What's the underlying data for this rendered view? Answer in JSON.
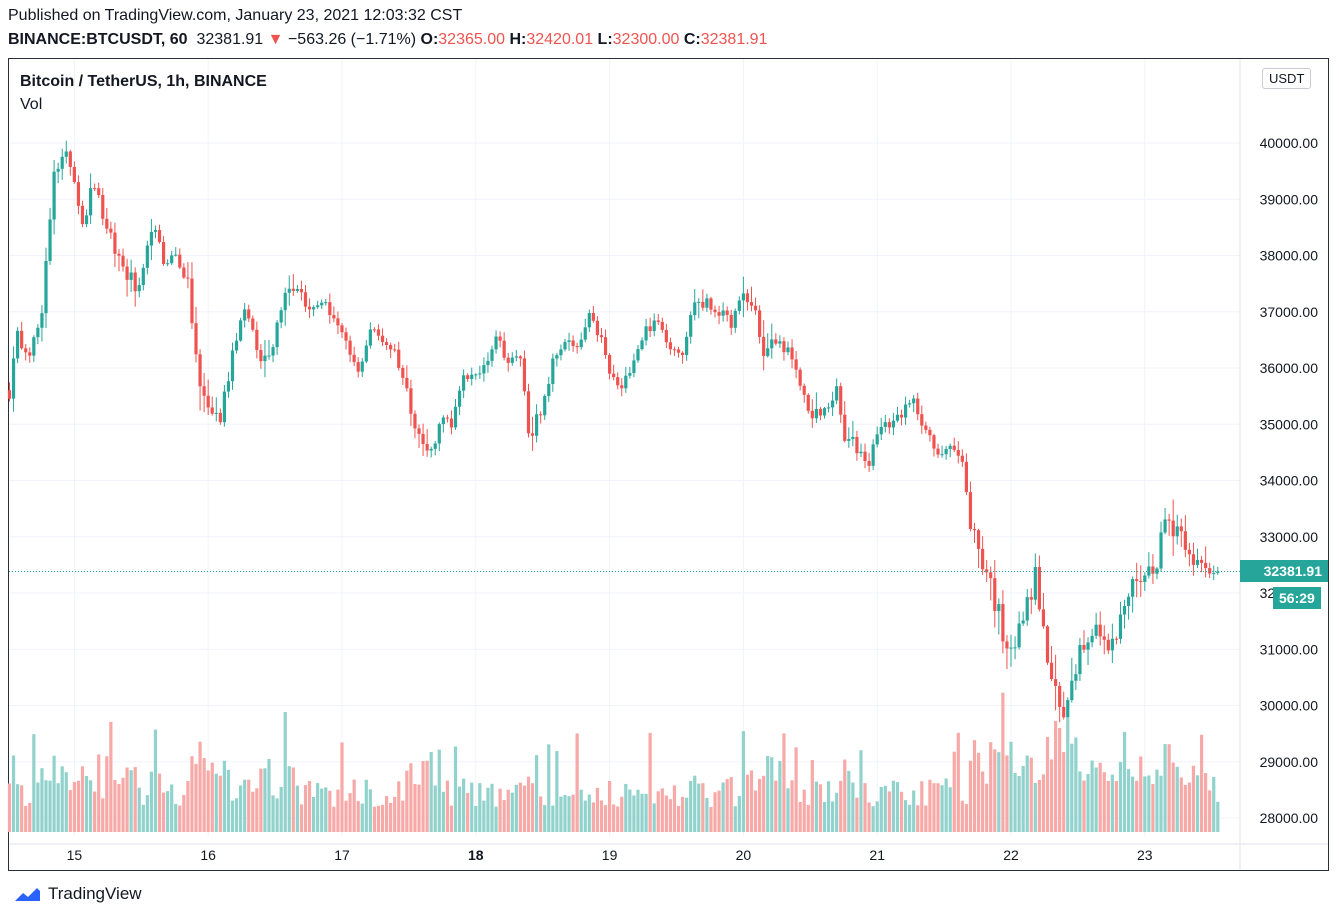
{
  "header": {
    "published": "Published on TradingView.com, January 23, 2021 12:03:32 CST",
    "symbol": "BINANCE:BTCUSDT, 60",
    "price": "32381.91",
    "change": "−563.26 (−1.71%)",
    "open_label": "O:",
    "open": "32365.00",
    "high_label": "H:",
    "high": "32420.01",
    "low_label": "L:",
    "low": "32300.00",
    "close_label": "C:",
    "close": "32381.91"
  },
  "legend": {
    "title": "Bitcoin / TetherUS, 1h, BINANCE",
    "volume": "Vol"
  },
  "currency_badge": "USDT",
  "price_badge": "32381.91",
  "countdown_badge": "56:29",
  "brand": "TradingView",
  "colors": {
    "up": "#26a69a",
    "down": "#ef5350",
    "vol_up": "#92d2cc",
    "vol_down": "#f7a9a7"
  },
  "chart_data": {
    "type": "candlestick",
    "y_ticks": [
      28000,
      29000,
      30000,
      31000,
      32000,
      33000,
      34000,
      35000,
      36000,
      37000,
      38000,
      39000,
      40000
    ],
    "y_tick_labels": [
      "28000.00",
      "29000.00",
      "30000.00",
      "31000.00",
      "32000.00",
      "33000.00",
      "34000.00",
      "35000.00",
      "36000.00",
      "37000.00",
      "38000.00",
      "39000.00",
      "40000.00"
    ],
    "ylim": [
      27750,
      41050
    ],
    "x_tick_labels": [
      "15",
      "16",
      "17",
      "18",
      "19",
      "20",
      "21",
      "22",
      "23"
    ],
    "x_tick_hours": [
      16,
      49,
      82,
      115,
      148,
      181,
      214,
      247,
      280
    ],
    "current_price": 32381.91,
    "anchors": [
      [
        0,
        35600,
        2
      ],
      [
        2,
        36500,
        1
      ],
      [
        5,
        36300,
        1
      ],
      [
        8,
        36900,
        2
      ],
      [
        11,
        39600,
        2
      ],
      [
        15,
        39700,
        1
      ],
      [
        18,
        38600,
        2
      ],
      [
        21,
        39300,
        1
      ],
      [
        24,
        38400,
        2
      ],
      [
        28,
        37800,
        2
      ],
      [
        32,
        37300,
        1
      ],
      [
        35,
        38500,
        2
      ],
      [
        38,
        37900,
        1
      ],
      [
        41,
        38000,
        1
      ],
      [
        44,
        37500,
        2
      ],
      [
        47,
        35600,
        3
      ],
      [
        49,
        35300,
        2
      ],
      [
        52,
        35100,
        2
      ],
      [
        55,
        36300,
        1
      ],
      [
        58,
        37100,
        1
      ],
      [
        62,
        36100,
        2
      ],
      [
        65,
        36500,
        1
      ],
      [
        68,
        37400,
        2
      ],
      [
        71,
        37500,
        1
      ],
      [
        74,
        37000,
        1
      ],
      [
        77,
        37200,
        1
      ],
      [
        80,
        36900,
        1
      ],
      [
        83,
        36400,
        1
      ],
      [
        86,
        35900,
        1
      ],
      [
        89,
        36700,
        1
      ],
      [
        92,
        36500,
        1
      ],
      [
        95,
        36300,
        1
      ],
      [
        98,
        35600,
        2
      ],
      [
        102,
        34600,
        2
      ],
      [
        104,
        34500,
        1
      ],
      [
        107,
        35200,
        1
      ],
      [
        109,
        34900,
        1
      ],
      [
        112,
        35900,
        1
      ],
      [
        115,
        35800,
        1
      ],
      [
        118,
        36200,
        1
      ],
      [
        120,
        36600,
        1
      ],
      [
        123,
        36100,
        1
      ],
      [
        126,
        36200,
        1
      ],
      [
        128,
        34900,
        2
      ],
      [
        131,
        35100,
        1
      ],
      [
        134,
        36100,
        1
      ],
      [
        137,
        36500,
        1
      ],
      [
        140,
        36300,
        1
      ],
      [
        143,
        36900,
        1
      ],
      [
        146,
        36500,
        1
      ],
      [
        148,
        35900,
        1
      ],
      [
        151,
        35600,
        1
      ],
      [
        154,
        36200,
        1
      ],
      [
        157,
        36700,
        1
      ],
      [
        160,
        36800,
        1
      ],
      [
        163,
        36400,
        1
      ],
      [
        166,
        36300,
        1
      ],
      [
        169,
        37200,
        2
      ],
      [
        172,
        37100,
        1
      ],
      [
        175,
        37000,
        1
      ],
      [
        178,
        36800,
        1
      ],
      [
        181,
        37300,
        2
      ],
      [
        184,
        37000,
        1
      ],
      [
        186,
        36200,
        2
      ],
      [
        189,
        36500,
        1
      ],
      [
        192,
        36300,
        1
      ],
      [
        195,
        35700,
        1
      ],
      [
        198,
        35100,
        2
      ],
      [
        201,
        35200,
        1
      ],
      [
        204,
        35600,
        1
      ],
      [
        206,
        34700,
        2
      ],
      [
        209,
        34600,
        1
      ],
      [
        212,
        34300,
        1
      ],
      [
        214,
        34900,
        1
      ],
      [
        217,
        35000,
        1
      ],
      [
        220,
        35200,
        1
      ],
      [
        223,
        35400,
        1
      ],
      [
        226,
        34900,
        1
      ],
      [
        229,
        34400,
        1
      ],
      [
        232,
        34700,
        1
      ],
      [
        235,
        34300,
        1
      ],
      [
        237,
        33200,
        3
      ],
      [
        240,
        32600,
        2
      ],
      [
        242,
        32200,
        3
      ],
      [
        245,
        31300,
        3
      ],
      [
        248,
        31100,
        2
      ],
      [
        251,
        31800,
        2
      ],
      [
        253,
        32300,
        2
      ],
      [
        256,
        30800,
        3
      ],
      [
        258,
        30100,
        4
      ],
      [
        260,
        29700,
        3
      ],
      [
        262,
        30600,
        3
      ],
      [
        264,
        31000,
        2
      ],
      [
        266,
        31300,
        2
      ],
      [
        269,
        31400,
        2
      ],
      [
        271,
        31000,
        2
      ],
      [
        273,
        31200,
        2
      ],
      [
        275,
        31800,
        2
      ],
      [
        278,
        32300,
        2
      ],
      [
        280,
        32300,
        2
      ],
      [
        283,
        32600,
        2
      ],
      [
        285,
        33300,
        3
      ],
      [
        288,
        33200,
        2
      ],
      [
        291,
        32800,
        2
      ],
      [
        293,
        32500,
        2
      ],
      [
        296,
        32300,
        1
      ],
      [
        298,
        32382,
        1
      ]
    ]
  }
}
